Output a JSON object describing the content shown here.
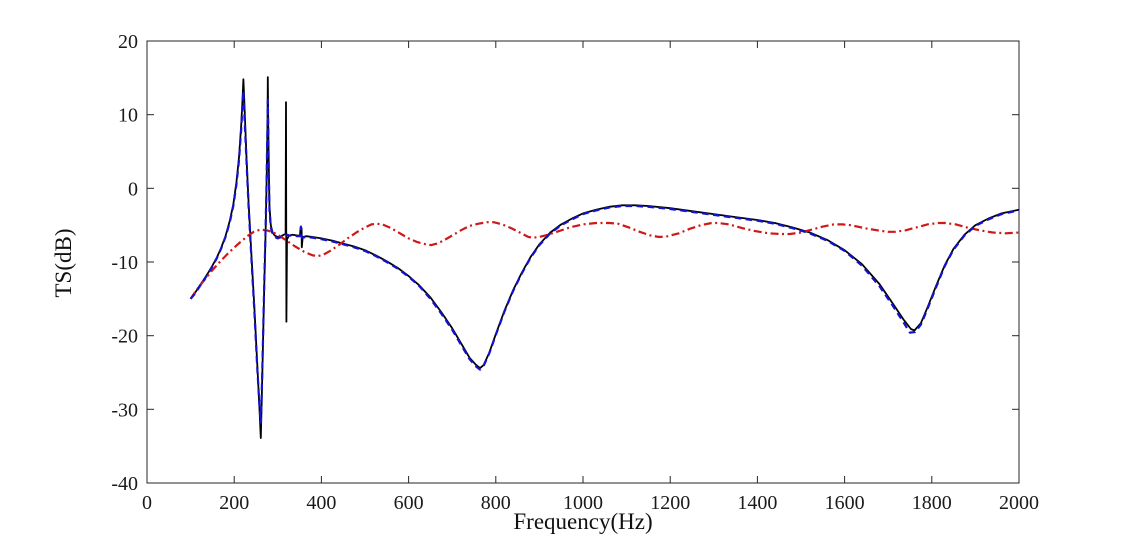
{
  "figure": {
    "background_color": "#ffffff",
    "axis_color": "#262626",
    "text_color": "#1a1a1a"
  },
  "chart_data": {
    "type": "line",
    "title": "",
    "xlabel": "Frequency(Hz)",
    "ylabel": "TS(dB)",
    "xlim": [
      0,
      2000
    ],
    "ylim": [
      -40,
      20
    ],
    "x_ticks": [
      0,
      200,
      400,
      600,
      800,
      1000,
      1200,
      1400,
      1600,
      1800,
      2000
    ],
    "y_ticks": [
      -40,
      -30,
      -20,
      -10,
      0,
      10,
      20
    ],
    "grid": false,
    "legend_position": "none",
    "series": [
      {
        "name": "black-solid",
        "color": "#000000",
        "style": "solid",
        "width": 1.8,
        "points": [
          [
            100,
            -15
          ],
          [
            110,
            -14.2
          ],
          [
            120,
            -13.3
          ],
          [
            130,
            -12.4
          ],
          [
            140,
            -11.5
          ],
          [
            150,
            -10.5
          ],
          [
            160,
            -9.4
          ],
          [
            170,
            -8.1
          ],
          [
            180,
            -6.5
          ],
          [
            190,
            -4.4
          ],
          [
            198,
            -2.2
          ],
          [
            205,
            0.8
          ],
          [
            211,
            4.2
          ],
          [
            216,
            8.6
          ],
          [
            219,
            12
          ],
          [
            221,
            14.8
          ],
          [
            224,
            10.5
          ],
          [
            228,
            4.5
          ],
          [
            233,
            -2
          ],
          [
            239,
            -8.5
          ],
          [
            246,
            -16
          ],
          [
            253,
            -24
          ],
          [
            258,
            -30
          ],
          [
            261,
            -33.9
          ],
          [
            263,
            -29
          ],
          [
            266,
            -21
          ],
          [
            269,
            -13
          ],
          [
            272,
            -6
          ],
          [
            274,
            0
          ],
          [
            275.5,
            5
          ],
          [
            276.5,
            10
          ],
          [
            277,
            15.1
          ],
          [
            278,
            9
          ],
          [
            279.5,
            2
          ],
          [
            281,
            -2.5
          ],
          [
            284,
            -5
          ],
          [
            288,
            -6
          ],
          [
            293,
            -6.4
          ],
          [
            300,
            -6.6
          ],
          [
            308,
            -6.5
          ],
          [
            314,
            -6.3
          ],
          [
            318,
            -6.2
          ],
          [
            318.7,
            11.7
          ],
          [
            319.8,
            -18.1
          ],
          [
            321,
            -6.9
          ],
          [
            326,
            -6.4
          ],
          [
            334,
            -6.3
          ],
          [
            344,
            -6.4
          ],
          [
            351,
            -6.4
          ],
          [
            352,
            -5.4
          ],
          [
            354.5,
            -5.4
          ],
          [
            355,
            -8
          ],
          [
            357,
            -6.6
          ],
          [
            365,
            -6.5
          ],
          [
            380,
            -6.6
          ],
          [
            400,
            -6.8
          ],
          [
            425,
            -7.1
          ],
          [
            450,
            -7.5
          ],
          [
            475,
            -7.9
          ],
          [
            500,
            -8.4
          ],
          [
            525,
            -9.1
          ],
          [
            550,
            -9.9
          ],
          [
            575,
            -10.8
          ],
          [
            600,
            -11.9
          ],
          [
            625,
            -13.2
          ],
          [
            650,
            -14.8
          ],
          [
            675,
            -16.8
          ],
          [
            700,
            -19
          ],
          [
            720,
            -21
          ],
          [
            740,
            -23
          ],
          [
            755,
            -24
          ],
          [
            764,
            -24.4
          ],
          [
            772,
            -24
          ],
          [
            785,
            -22.3
          ],
          [
            800,
            -19.8
          ],
          [
            820,
            -16.6
          ],
          [
            840,
            -13.8
          ],
          [
            860,
            -11.4
          ],
          [
            880,
            -9.3
          ],
          [
            900,
            -7.6
          ],
          [
            925,
            -6
          ],
          [
            950,
            -4.9
          ],
          [
            975,
            -4.1
          ],
          [
            1000,
            -3.4
          ],
          [
            1030,
            -2.9
          ],
          [
            1060,
            -2.5
          ],
          [
            1090,
            -2.3
          ],
          [
            1120,
            -2.3
          ],
          [
            1150,
            -2.4
          ],
          [
            1200,
            -2.7
          ],
          [
            1250,
            -3.1
          ],
          [
            1300,
            -3.5
          ],
          [
            1350,
            -3.9
          ],
          [
            1400,
            -4.3
          ],
          [
            1440,
            -4.7
          ],
          [
            1480,
            -5.3
          ],
          [
            1520,
            -6
          ],
          [
            1560,
            -7
          ],
          [
            1600,
            -8.4
          ],
          [
            1640,
            -10.3
          ],
          [
            1680,
            -13
          ],
          [
            1710,
            -15.6
          ],
          [
            1735,
            -17.8
          ],
          [
            1752,
            -19.1
          ],
          [
            1760,
            -19.3
          ],
          [
            1775,
            -18.3
          ],
          [
            1790,
            -16.2
          ],
          [
            1810,
            -13.2
          ],
          [
            1830,
            -10.4
          ],
          [
            1850,
            -8.2
          ],
          [
            1875,
            -6.3
          ],
          [
            1900,
            -5
          ],
          [
            1930,
            -4.1
          ],
          [
            1960,
            -3.4
          ],
          [
            2000,
            -2.9
          ]
        ]
      },
      {
        "name": "red-dashdot",
        "color": "#d01818",
        "style": "dashdot",
        "width": 2.2,
        "points": [
          [
            100,
            -15
          ],
          [
            110,
            -14.1
          ],
          [
            120,
            -13.3
          ],
          [
            135,
            -12.2
          ],
          [
            150,
            -11.1
          ],
          [
            170,
            -9.8
          ],
          [
            190,
            -8.6
          ],
          [
            210,
            -7.5
          ],
          [
            230,
            -6.5
          ],
          [
            245,
            -5.9
          ],
          [
            260,
            -5.6
          ],
          [
            275,
            -5.7
          ],
          [
            290,
            -6
          ],
          [
            305,
            -6.5
          ],
          [
            320,
            -7.1
          ],
          [
            340,
            -7.9
          ],
          [
            360,
            -8.6
          ],
          [
            380,
            -9.1
          ],
          [
            392,
            -9.2
          ],
          [
            405,
            -9
          ],
          [
            420,
            -8.5
          ],
          [
            440,
            -7.7
          ],
          [
            460,
            -6.8
          ],
          [
            480,
            -6
          ],
          [
            500,
            -5.3
          ],
          [
            515,
            -4.9
          ],
          [
            527,
            -4.8
          ],
          [
            540,
            -4.9
          ],
          [
            560,
            -5.4
          ],
          [
            580,
            -6.1
          ],
          [
            600,
            -6.8
          ],
          [
            620,
            -7.3
          ],
          [
            640,
            -7.6
          ],
          [
            652,
            -7.7
          ],
          [
            665,
            -7.5
          ],
          [
            680,
            -7.1
          ],
          [
            700,
            -6.4
          ],
          [
            720,
            -5.7
          ],
          [
            740,
            -5.1
          ],
          [
            760,
            -4.8
          ],
          [
            780,
            -4.6
          ],
          [
            795,
            -4.6
          ],
          [
            815,
            -4.9
          ],
          [
            835,
            -5.4
          ],
          [
            855,
            -6
          ],
          [
            875,
            -6.6
          ],
          [
            885,
            -6.7
          ],
          [
            900,
            -6.6
          ],
          [
            920,
            -6.3
          ],
          [
            945,
            -5.8
          ],
          [
            970,
            -5.3
          ],
          [
            1000,
            -4.9
          ],
          [
            1030,
            -4.7
          ],
          [
            1060,
            -4.7
          ],
          [
            1080,
            -4.8
          ],
          [
            1105,
            -5.3
          ],
          [
            1130,
            -5.9
          ],
          [
            1155,
            -6.4
          ],
          [
            1175,
            -6.6
          ],
          [
            1195,
            -6.5
          ],
          [
            1220,
            -6.1
          ],
          [
            1245,
            -5.5
          ],
          [
            1270,
            -5
          ],
          [
            1295,
            -4.7
          ],
          [
            1310,
            -4.7
          ],
          [
            1335,
            -4.9
          ],
          [
            1365,
            -5.4
          ],
          [
            1395,
            -5.8
          ],
          [
            1425,
            -6.1
          ],
          [
            1455,
            -6.2
          ],
          [
            1475,
            -6.2
          ],
          [
            1500,
            -6
          ],
          [
            1525,
            -5.6
          ],
          [
            1550,
            -5.2
          ],
          [
            1575,
            -4.9
          ],
          [
            1595,
            -4.9
          ],
          [
            1615,
            -5
          ],
          [
            1645,
            -5.4
          ],
          [
            1675,
            -5.7
          ],
          [
            1700,
            -5.9
          ],
          [
            1715,
            -5.9
          ],
          [
            1740,
            -5.7
          ],
          [
            1765,
            -5.3
          ],
          [
            1790,
            -4.9
          ],
          [
            1815,
            -4.7
          ],
          [
            1830,
            -4.7
          ],
          [
            1855,
            -4.9
          ],
          [
            1880,
            -5.3
          ],
          [
            1910,
            -5.7
          ],
          [
            1940,
            -6
          ],
          [
            1970,
            -6.1
          ],
          [
            2000,
            -6
          ]
        ]
      },
      {
        "name": "blue-dashed",
        "color": "#1212d0",
        "style": "dashed",
        "width": 2.2,
        "points": [
          [
            100,
            -15
          ],
          [
            110,
            -14.3
          ],
          [
            120,
            -13.4
          ],
          [
            130,
            -12.5
          ],
          [
            140,
            -11.6
          ],
          [
            150,
            -10.6
          ],
          [
            160,
            -9.5
          ],
          [
            170,
            -8.2
          ],
          [
            180,
            -6.6
          ],
          [
            190,
            -4.6
          ],
          [
            198,
            -2.4
          ],
          [
            205,
            0.5
          ],
          [
            211,
            3.8
          ],
          [
            216,
            8
          ],
          [
            219,
            11.2
          ],
          [
            221,
            13.2
          ],
          [
            224,
            9
          ],
          [
            228,
            4
          ],
          [
            233,
            -2.5
          ],
          [
            239,
            -9
          ],
          [
            246,
            -16.5
          ],
          [
            253,
            -24.5
          ],
          [
            258,
            -29.5
          ],
          [
            261,
            -31.8
          ],
          [
            263,
            -28
          ],
          [
            266,
            -20.5
          ],
          [
            269,
            -12.5
          ],
          [
            272,
            -5.5
          ],
          [
            274,
            0.5
          ],
          [
            275.5,
            5.5
          ],
          [
            276.5,
            9.5
          ],
          [
            277,
            12
          ],
          [
            278,
            8.5
          ],
          [
            279.5,
            1.5
          ],
          [
            281,
            -3
          ],
          [
            284,
            -5.3
          ],
          [
            288,
            -6.2
          ],
          [
            293,
            -6.6
          ],
          [
            300,
            -6.8
          ],
          [
            308,
            -6.6
          ],
          [
            314,
            -6.4
          ],
          [
            318,
            -6.3
          ],
          [
            321,
            -6.3
          ],
          [
            326,
            -6.4
          ],
          [
            334,
            -6.4
          ],
          [
            344,
            -6.5
          ],
          [
            351,
            -6.5
          ],
          [
            353,
            -5.2
          ],
          [
            355,
            -6.7
          ],
          [
            365,
            -6.6
          ],
          [
            380,
            -6.7
          ],
          [
            400,
            -6.9
          ],
          [
            425,
            -7.2
          ],
          [
            450,
            -7.6
          ],
          [
            475,
            -8
          ],
          [
            500,
            -8.5
          ],
          [
            525,
            -9.2
          ],
          [
            550,
            -10
          ],
          [
            575,
            -10.9
          ],
          [
            600,
            -12
          ],
          [
            625,
            -13.3
          ],
          [
            650,
            -15
          ],
          [
            675,
            -17
          ],
          [
            700,
            -19.2
          ],
          [
            720,
            -21.2
          ],
          [
            740,
            -23.2
          ],
          [
            755,
            -24.2
          ],
          [
            764,
            -24.6
          ],
          [
            772,
            -24.1
          ],
          [
            785,
            -22.4
          ],
          [
            800,
            -19.9
          ],
          [
            820,
            -16.7
          ],
          [
            840,
            -13.9
          ],
          [
            860,
            -11.5
          ],
          [
            880,
            -9.4
          ],
          [
            900,
            -7.7
          ],
          [
            925,
            -6.1
          ],
          [
            950,
            -5
          ],
          [
            975,
            -4.2
          ],
          [
            1000,
            -3.5
          ],
          [
            1030,
            -3
          ],
          [
            1060,
            -2.6
          ],
          [
            1090,
            -2.4
          ],
          [
            1120,
            -2.4
          ],
          [
            1150,
            -2.5
          ],
          [
            1200,
            -2.8
          ],
          [
            1250,
            -3.2
          ],
          [
            1300,
            -3.6
          ],
          [
            1350,
            -4
          ],
          [
            1400,
            -4.4
          ],
          [
            1440,
            -4.8
          ],
          [
            1480,
            -5.4
          ],
          [
            1520,
            -6.1
          ],
          [
            1560,
            -7.1
          ],
          [
            1600,
            -8.5
          ],
          [
            1640,
            -10.5
          ],
          [
            1680,
            -13.3
          ],
          [
            1710,
            -15.9
          ],
          [
            1735,
            -18.2
          ],
          [
            1750,
            -19.6
          ],
          [
            1762,
            -19.5
          ],
          [
            1775,
            -18.5
          ],
          [
            1790,
            -16.4
          ],
          [
            1810,
            -13.4
          ],
          [
            1830,
            -10.5
          ],
          [
            1850,
            -8.3
          ],
          [
            1875,
            -6.4
          ],
          [
            1900,
            -5.1
          ],
          [
            1930,
            -4.2
          ],
          [
            1960,
            -3.5
          ],
          [
            2000,
            -3
          ]
        ]
      }
    ]
  }
}
